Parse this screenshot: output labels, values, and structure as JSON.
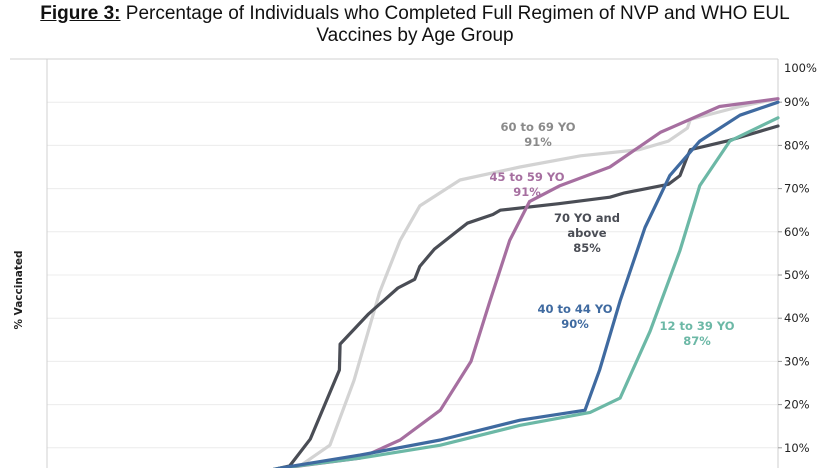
{
  "title": {
    "figure_label": "Figure 3:",
    "text_line1": "Percentage of Individuals who Completed Full Regimen of NVP and WHO EUL",
    "text_line2": "Vaccines by Age Group"
  },
  "chart_data": {
    "type": "line",
    "title": "Figure 3: Percentage of Individuals who Completed Full Regimen of NVP and WHO EUL Vaccines by Age Group",
    "xlabel": "",
    "ylabel": "% Vaccinated",
    "x_note": "x-axis has no visible labels; x is a relative time index 0-100 across the visible plot",
    "xlim": [
      0,
      100
    ],
    "ylim": [
      0,
      100
    ],
    "y_axis_side": "right",
    "y_ticks": [
      "10%",
      "20%",
      "30%",
      "40%",
      "50%",
      "60%",
      "70%",
      "80%",
      "90%",
      "100%"
    ],
    "y_tick_values": [
      10,
      20,
      30,
      40,
      50,
      60,
      70,
      80,
      90,
      100
    ],
    "grid": "horizontal",
    "legend": "inline annotations",
    "series": [
      {
        "name": "70 YO and above",
        "final_value_label": "85%",
        "color": "#4a4d55",
        "points": [
          [
            31,
            5
          ],
          [
            33.2,
            5.8
          ],
          [
            36,
            12
          ],
          [
            38,
            20
          ],
          [
            40,
            28
          ],
          [
            40.1,
            34
          ],
          [
            44,
            41
          ],
          [
            46,
            44
          ],
          [
            48,
            47
          ],
          [
            50.3,
            49
          ],
          [
            51,
            52
          ],
          [
            53,
            56
          ],
          [
            56,
            60
          ],
          [
            57.5,
            62
          ],
          [
            61,
            64
          ],
          [
            62,
            65
          ],
          [
            70,
            66.5
          ],
          [
            77,
            68
          ],
          [
            79,
            69
          ],
          [
            85,
            71
          ],
          [
            86.6,
            73
          ],
          [
            87.5,
            77
          ],
          [
            88,
            79
          ],
          [
            93,
            81
          ],
          [
            100,
            84.5
          ]
        ]
      },
      {
        "name": "60 to 69 YO",
        "final_value_label": "91%",
        "color": "#d3d3d3",
        "points": [
          [
            31,
            5
          ],
          [
            34.6,
            5.8
          ],
          [
            38.7,
            10.6
          ],
          [
            42,
            25.6
          ],
          [
            45.5,
            46
          ],
          [
            48.3,
            58
          ],
          [
            51,
            66
          ],
          [
            56.5,
            72
          ],
          [
            64.7,
            75
          ],
          [
            73,
            77.6
          ],
          [
            81,
            79
          ],
          [
            85,
            81
          ],
          [
            87.6,
            84
          ],
          [
            88,
            86
          ],
          [
            94.8,
            89
          ],
          [
            100,
            90.8
          ]
        ]
      },
      {
        "name": "45 to 59 YO",
        "final_value_label": "91%",
        "color": "#a66fa0",
        "points": [
          [
            31,
            5
          ],
          [
            34.6,
            5.8
          ],
          [
            42.8,
            7.6
          ],
          [
            48.3,
            11.8
          ],
          [
            53.8,
            18.7
          ],
          [
            58,
            30
          ],
          [
            60.6,
            44
          ],
          [
            63.3,
            58
          ],
          [
            66,
            67
          ],
          [
            70.2,
            70.7
          ],
          [
            77,
            75
          ],
          [
            83.9,
            83
          ],
          [
            92,
            89
          ],
          [
            100,
            90.8
          ]
        ]
      },
      {
        "name": "40 to 44 YO",
        "final_value_label": "90%",
        "color": "#3f6aa0",
        "points": [
          [
            31,
            5
          ],
          [
            31.9,
            5.3
          ],
          [
            42.8,
            8.3
          ],
          [
            53.8,
            11.8
          ],
          [
            64.7,
            16.4
          ],
          [
            73.6,
            18.7
          ],
          [
            75.6,
            28
          ],
          [
            78.4,
            44
          ],
          [
            81.8,
            61
          ],
          [
            85.2,
            73
          ],
          [
            89.3,
            81
          ],
          [
            94.8,
            87
          ],
          [
            100,
            90
          ]
        ]
      },
      {
        "name": "12 to 39 YO",
        "final_value_label": "87%",
        "color": "#6cb8a6",
        "points": [
          [
            31,
            5
          ],
          [
            31.9,
            5.3
          ],
          [
            42.8,
            7.6
          ],
          [
            53.8,
            10.6
          ],
          [
            64.7,
            15.2
          ],
          [
            74.3,
            18.2
          ],
          [
            78.4,
            21.5
          ],
          [
            82.5,
            37
          ],
          [
            86.6,
            55.7
          ],
          [
            89.3,
            70.7
          ],
          [
            93.4,
            81
          ],
          [
            100,
            86.4
          ]
        ]
      }
    ],
    "annotations": [
      {
        "series": "60 to 69 YO",
        "lines": [
          "60 to 69 YO",
          "91%"
        ],
        "color": "#8a8a8a"
      },
      {
        "series": "45 to 59 YO",
        "lines": [
          "45 to 59 YO",
          "91%"
        ],
        "color": "#a66fa0"
      },
      {
        "series": "70 YO and above",
        "lines": [
          "70 YO and",
          "above",
          "85%"
        ],
        "color": "#4a4d55"
      },
      {
        "series": "40 to 44 YO",
        "lines": [
          "40 to 44 YO",
          "90%"
        ],
        "color": "#3f6aa0"
      },
      {
        "series": "12 to 39 YO",
        "lines": [
          "12 to 39 YO",
          "87%"
        ],
        "color": "#6cb8a6"
      }
    ]
  }
}
